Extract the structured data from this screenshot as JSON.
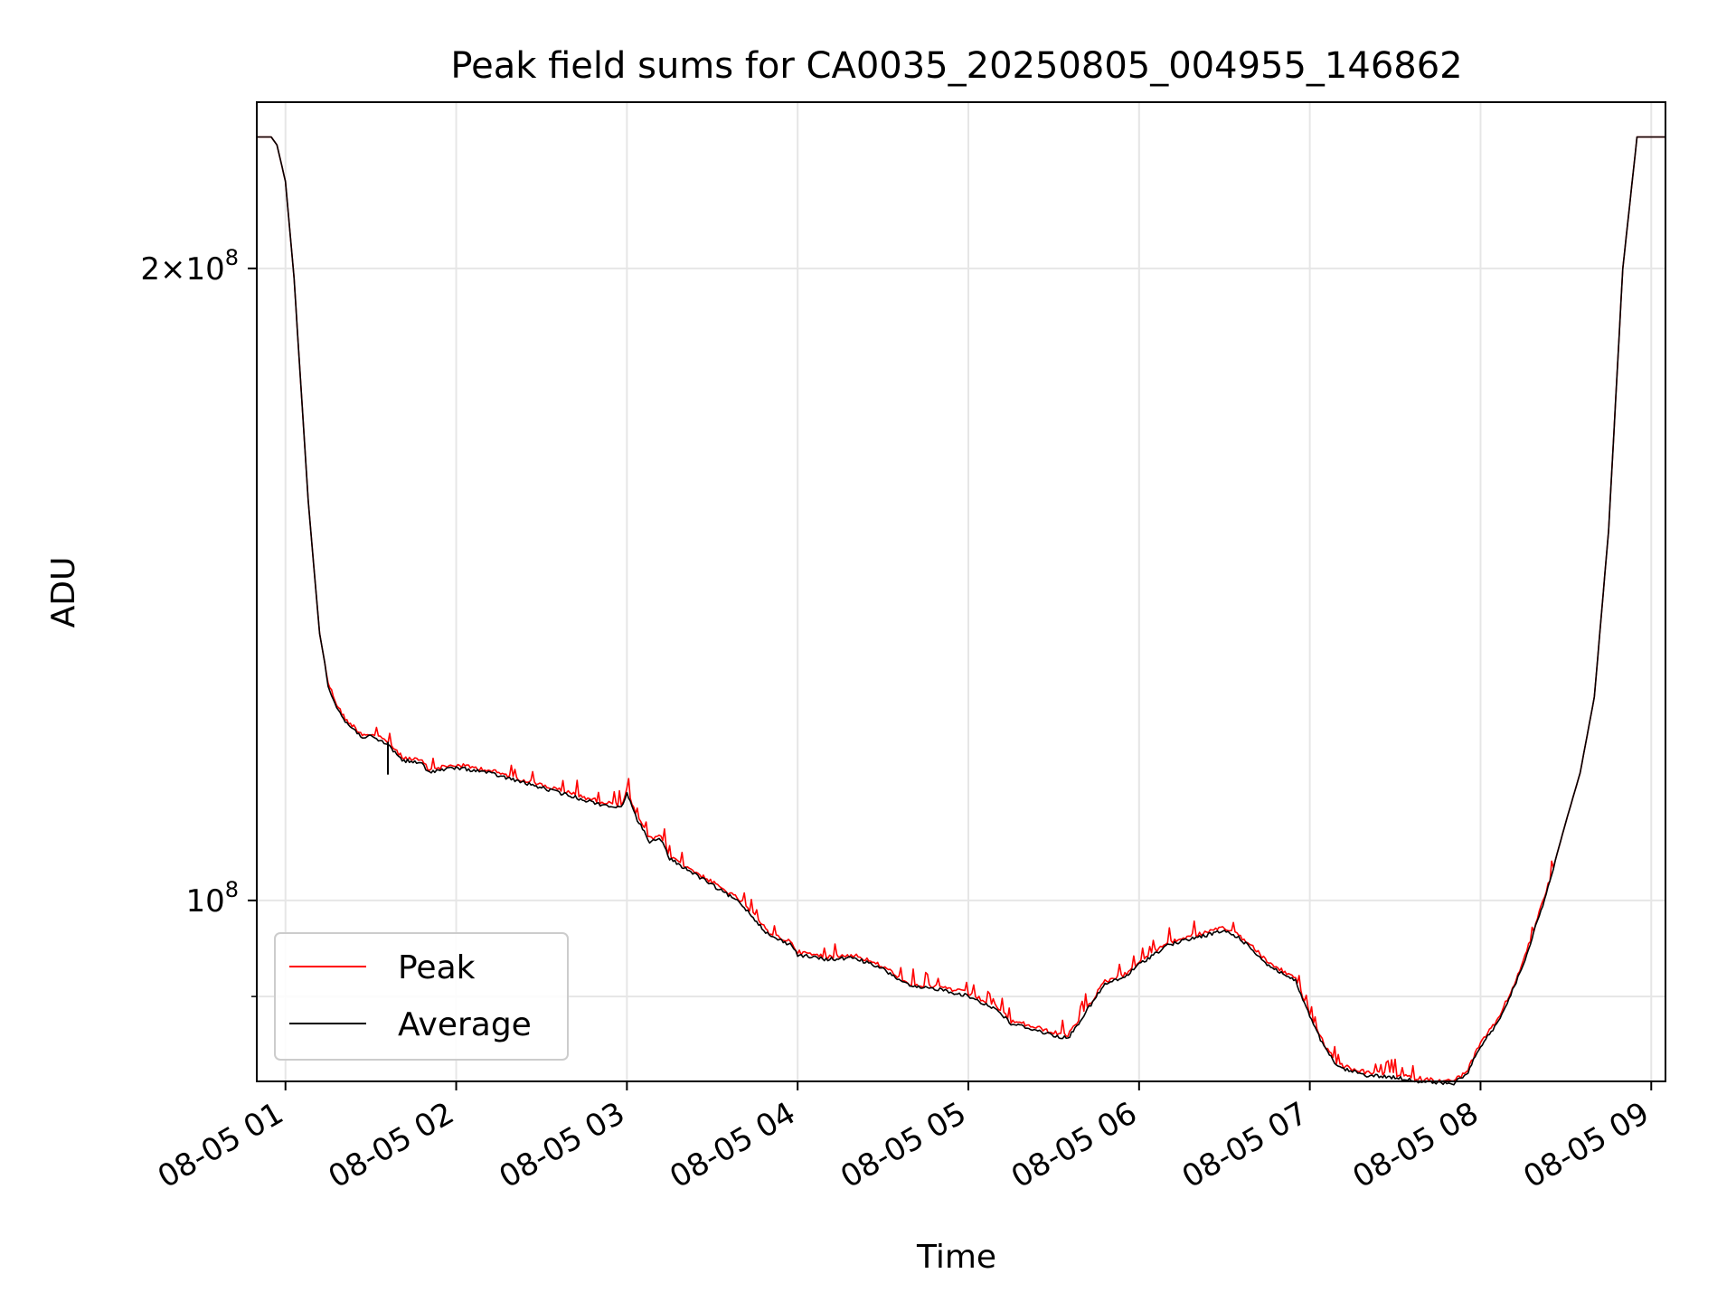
{
  "chart_data": {
    "type": "line",
    "title": "Peak field sums for CA0035_20250805_004955_146862",
    "xlabel": "Time",
    "ylabel": "ADU",
    "x_unit": "time (2025-08-05)",
    "xlim": [
      "08-05 00:49:55",
      "08-05 09:05:00"
    ],
    "y_scale": "log",
    "ylim": [
      82000000,
      240000000
    ],
    "grid": true,
    "legend_position": "lower-left",
    "x_ticks": [
      {
        "t": "01:00",
        "label": "08-05 01"
      },
      {
        "t": "02:00",
        "label": "08-05 02"
      },
      {
        "t": "03:00",
        "label": "08-05 03"
      },
      {
        "t": "04:00",
        "label": "08-05 04"
      },
      {
        "t": "05:00",
        "label": "08-05 05"
      },
      {
        "t": "06:00",
        "label": "08-05 06"
      },
      {
        "t": "07:00",
        "label": "08-05 07"
      },
      {
        "t": "08:00",
        "label": "08-05 08"
      },
      {
        "t": "09:00",
        "label": "08-05 09"
      }
    ],
    "y_ticks_major": [
      {
        "value": 100000000,
        "mantissa": "",
        "base": "10",
        "exp": "8"
      },
      {
        "value": 200000000,
        "mantissa": "2×",
        "base": "10",
        "exp": "8"
      }
    ],
    "y_ticks_minor": [
      90000000
    ],
    "series": [
      {
        "name": "Peak",
        "color": "#ff0000",
        "x": [
          "00:49:55",
          "00:55",
          "00:57",
          "01:00",
          "01:03",
          "01:06",
          "01:08",
          "01:10",
          "01:12",
          "01:15",
          "01:18",
          "01:21",
          "01:24",
          "01:27",
          "01:30",
          "01:36",
          "01:41",
          "01:48",
          "01:50",
          "02:00",
          "02:10",
          "02:20",
          "02:30",
          "02:40",
          "02:50",
          "02:58",
          "03:00",
          "03:03",
          "03:08",
          "03:12",
          "03:15",
          "03:20",
          "03:30",
          "03:40",
          "03:50",
          "03:58",
          "04:00",
          "04:10",
          "04:20",
          "04:30",
          "04:40",
          "04:50",
          "05:00",
          "05:10",
          "05:15",
          "05:20",
          "05:30",
          "05:35",
          "05:40",
          "05:48",
          "05:55",
          "06:00",
          "06:10",
          "06:20",
          "06:30",
          "06:35",
          "06:40",
          "06:45",
          "06:55",
          "07:00",
          "07:05",
          "07:10",
          "07:20",
          "07:30",
          "07:40",
          "07:50",
          "07:55",
          "08:00",
          "08:05",
          "08:10",
          "08:15",
          "08:20",
          "08:25",
          "08:30",
          "08:35",
          "08:40",
          "08:45",
          "08:50",
          "08:55",
          "09:05"
        ],
        "values": [
          231000000,
          231000000,
          229000000,
          220000000,
          198000000,
          171000000,
          155000000,
          144000000,
          134000000,
          127000000,
          124000000,
          122000000,
          121000000,
          120000000,
          120000000,
          119000000,
          117000000,
          116500000,
          115500000,
          116000000,
          115500000,
          114500000,
          113500000,
          112500000,
          111500000,
          111000000,
          113000000,
          110000000,
          107000000,
          107200000,
          105000000,
          104000000,
          102000000,
          100000000,
          96500000,
          95500000,
          94500000,
          94000000,
          94200000,
          93000000,
          91200000,
          91000000,
          90300000,
          89000000,
          87600000,
          87300000,
          86500000,
          86200000,
          88200000,
          91500000,
          92200000,
          93500000,
          95500000,
          96300000,
          97000000,
          96300000,
          95000000,
          93500000,
          91800000,
          88300000,
          85400000,
          83500000,
          82800000,
          82600000,
          82200000,
          82000000,
          82800000,
          85500000,
          87300000,
          90000000,
          93500000,
          98000000,
          103000000,
          109000000,
          115000000,
          125000000,
          150000000,
          200000000,
          231000000,
          231000000
        ]
      },
      {
        "name": "Average",
        "color": "#000000",
        "x": [
          "00:49:55",
          "00:55",
          "00:57",
          "01:00",
          "01:03",
          "01:06",
          "01:08",
          "01:10",
          "01:12",
          "01:15",
          "01:18",
          "01:21",
          "01:24",
          "01:27",
          "01:30",
          "01:36",
          "01:41",
          "01:48",
          "01:50",
          "02:00",
          "02:10",
          "02:20",
          "02:30",
          "02:40",
          "02:50",
          "02:58",
          "03:00",
          "03:03",
          "03:08",
          "03:12",
          "03:15",
          "03:20",
          "03:30",
          "03:40",
          "03:50",
          "03:58",
          "04:00",
          "04:10",
          "04:20",
          "04:30",
          "04:40",
          "04:50",
          "05:00",
          "05:10",
          "05:15",
          "05:20",
          "05:30",
          "05:35",
          "05:40",
          "05:48",
          "05:55",
          "06:00",
          "06:10",
          "06:20",
          "06:30",
          "06:35",
          "06:40",
          "06:45",
          "06:55",
          "07:00",
          "07:05",
          "07:10",
          "07:20",
          "07:30",
          "07:40",
          "07:50",
          "07:55",
          "08:00",
          "08:05",
          "08:10",
          "08:15",
          "08:20",
          "08:25",
          "08:30",
          "08:35",
          "08:40",
          "08:45",
          "08:50",
          "08:55",
          "09:05"
        ],
        "values": [
          231000000,
          231000000,
          229000000,
          220000000,
          198000000,
          171000000,
          155000000,
          144000000,
          134000000,
          127000000,
          124000000,
          122000000,
          121000000,
          120000000,
          120000000,
          119000000,
          117000000,
          116500000,
          115500000,
          116000000,
          115500000,
          114500000,
          113500000,
          112500000,
          111500000,
          111000000,
          113000000,
          110000000,
          107000000,
          107200000,
          105000000,
          104000000,
          102000000,
          100000000,
          96500000,
          95500000,
          94500000,
          94000000,
          94200000,
          93000000,
          91200000,
          91000000,
          90300000,
          89000000,
          87600000,
          87300000,
          86500000,
          86200000,
          88200000,
          91500000,
          92200000,
          93500000,
          95500000,
          96300000,
          97000000,
          96300000,
          95000000,
          93500000,
          91800000,
          88300000,
          85400000,
          83500000,
          82800000,
          82600000,
          82200000,
          82000000,
          82800000,
          85500000,
          87300000,
          90000000,
          93500000,
          98000000,
          103000000,
          109000000,
          115000000,
          125000000,
          150000000,
          200000000,
          231000000,
          231000000
        ],
        "offset_note_free": true
      }
    ],
    "spikes": [
      {
        "t": "01:36",
        "low": 114800000,
        "high": 119000000
      }
    ]
  }
}
